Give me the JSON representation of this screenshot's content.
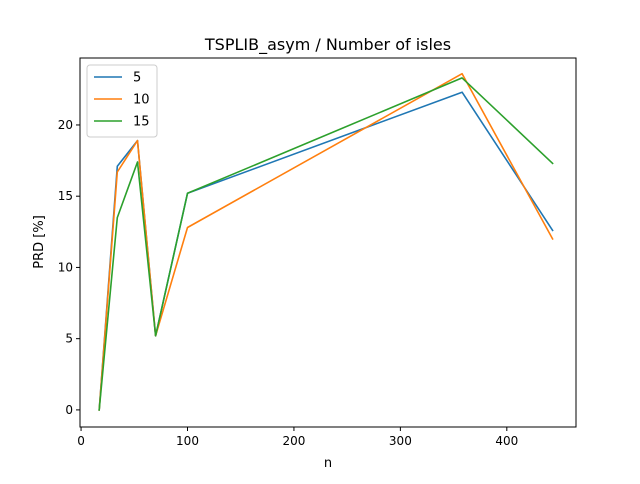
{
  "chart_data": {
    "type": "line",
    "title": "TSPLIB_asym / Number of isles",
    "xlabel": "n",
    "ylabel": "PRD [%]",
    "xlim": [
      -1,
      465
    ],
    "ylim": [
      -1.2,
      24.7
    ],
    "xticks": [
      0,
      100,
      200,
      300,
      400
    ],
    "yticks": [
      0,
      5,
      10,
      15,
      20
    ],
    "grid": false,
    "legend_position": "top-left",
    "x": [
      17,
      34,
      53,
      70,
      100,
      358,
      443
    ],
    "series": [
      {
        "name": "5",
        "color": "#1f77b4",
        "values": [
          0.0,
          17.1,
          18.9,
          5.2,
          15.2,
          22.3,
          12.6
        ]
      },
      {
        "name": "10",
        "color": "#ff7f0e",
        "values": [
          0.0,
          16.7,
          18.9,
          5.2,
          12.8,
          23.6,
          12.0
        ]
      },
      {
        "name": "15",
        "color": "#2ca02c",
        "values": [
          0.0,
          13.5,
          17.4,
          5.2,
          15.2,
          23.3,
          17.3
        ]
      }
    ]
  }
}
